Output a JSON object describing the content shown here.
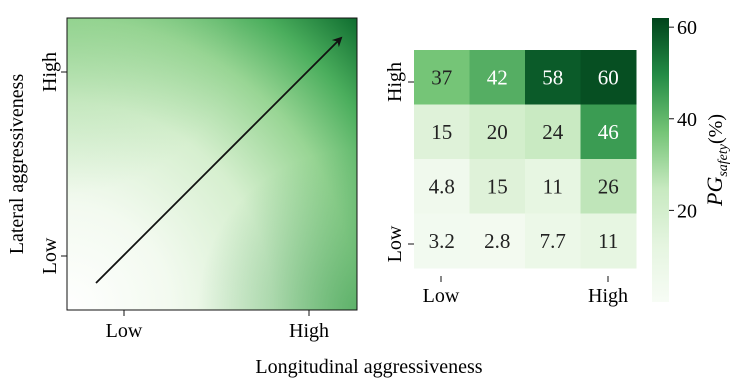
{
  "chart_data": [
    {
      "type": "heatmap",
      "subtype": "continuous-gradient",
      "xlabel": "Longitudinal aggressiveness",
      "ylabel": "Lateral aggressiveness",
      "xticks": [
        "Low",
        "High"
      ],
      "yticks": [
        "Low",
        "High"
      ],
      "annotation": "arrow from Low/Low to High/High",
      "colormap": "Greens"
    },
    {
      "type": "heatmap",
      "xticks": [
        "Low",
        "High"
      ],
      "yticks": [
        "High",
        "Low"
      ],
      "rows": [
        [
          37,
          42,
          58,
          60
        ],
        [
          15,
          20,
          24,
          46
        ],
        [
          4.8,
          15,
          11,
          26
        ],
        [
          3.2,
          2.8,
          7.7,
          11
        ]
      ],
      "row_labels": [
        "37|42|58|60",
        "15|20|24|46",
        "4.8|15|11|26",
        "3.2|2.8|7.7|11"
      ],
      "colorbar": {
        "label_main": "PG",
        "label_sub": "safety",
        "label_unit": "(%)",
        "range": [
          0,
          62
        ],
        "ticks": [
          20,
          40,
          60
        ]
      },
      "colormap": "Greens"
    }
  ],
  "colors": {
    "low": "#f7fcf5",
    "high": "#00441b"
  }
}
